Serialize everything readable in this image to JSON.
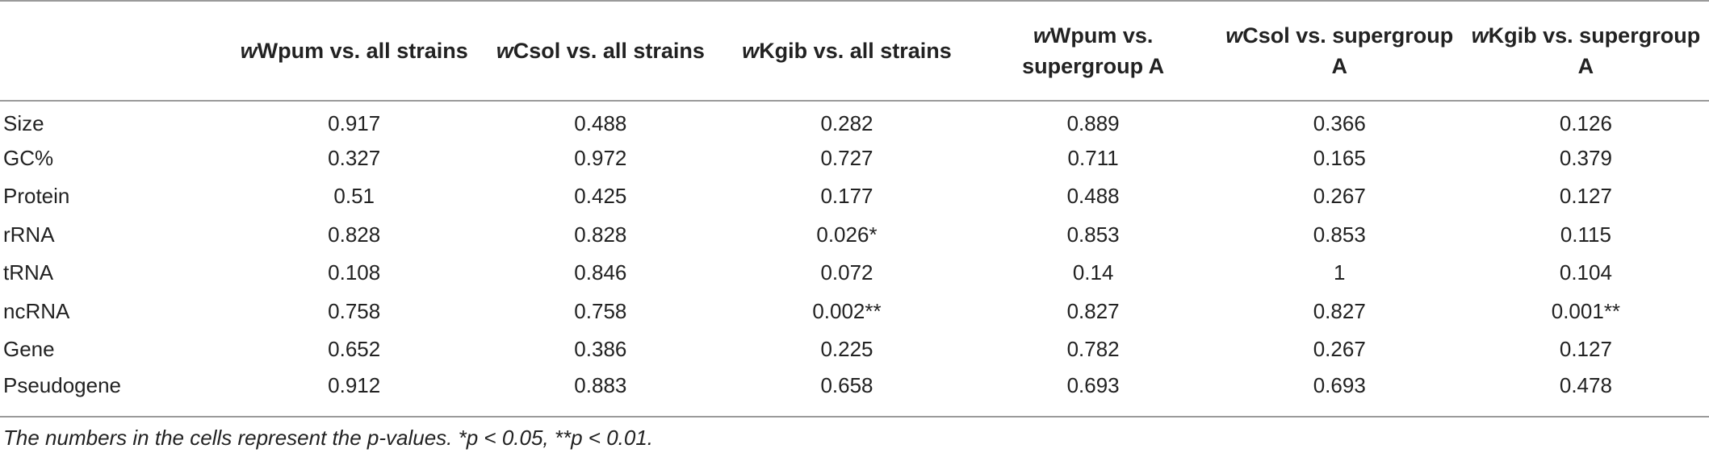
{
  "table": {
    "headers": [
      {
        "prefix": "w",
        "rest": "Wpum vs. all strains"
      },
      {
        "prefix": "w",
        "rest": "Csol vs. all strains"
      },
      {
        "prefix": "w",
        "rest": "Kgib vs. all strains"
      },
      {
        "prefix": "w",
        "rest": "Wpum vs. supergroup A"
      },
      {
        "prefix": "w",
        "rest": "Csol vs. supergroup A"
      },
      {
        "prefix": "w",
        "rest": "Kgib vs. supergroup A"
      }
    ],
    "rows": [
      {
        "label": "Size",
        "values": [
          "0.917",
          "0.488",
          "0.282",
          "0.889",
          "0.366",
          "0.126"
        ]
      },
      {
        "label": "GC%",
        "values": [
          "0.327",
          "0.972",
          "0.727",
          "0.711",
          "0.165",
          "0.379"
        ]
      },
      {
        "label": "Protein",
        "values": [
          "0.51",
          "0.425",
          "0.177",
          "0.488",
          "0.267",
          "0.127"
        ]
      },
      {
        "label": "rRNA",
        "values": [
          "0.828",
          "0.828",
          "0.026*",
          "0.853",
          "0.853",
          "0.115"
        ]
      },
      {
        "label": "tRNA",
        "values": [
          "0.108",
          "0.846",
          "0.072",
          "0.14",
          "1",
          "0.104"
        ]
      },
      {
        "label": "ncRNA",
        "values": [
          "0.758",
          "0.758",
          "0.002**",
          "0.827",
          "0.827",
          "0.001**"
        ]
      },
      {
        "label": "Gene",
        "values": [
          "0.652",
          "0.386",
          "0.225",
          "0.782",
          "0.267",
          "0.127"
        ]
      },
      {
        "label": "Pseudogene",
        "values": [
          "0.912",
          "0.883",
          "0.658",
          "0.693",
          "0.693",
          "0.478"
        ]
      }
    ]
  },
  "footnote": "The numbers in the cells represent the p-values. *p < 0.05, **p < 0.01."
}
